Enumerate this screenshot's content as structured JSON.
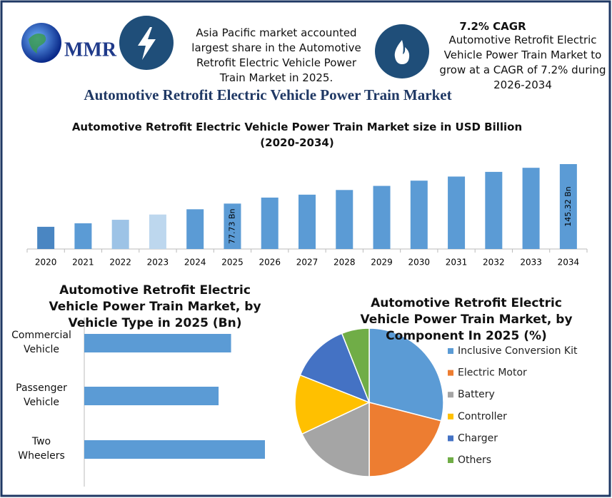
{
  "header": {
    "logo_text": "MMR",
    "info_text": "Asia Pacific market accounted largest share in the Automotive Retrofit Electric Vehicle Power Train Market in 2025.",
    "cagr_title": "7.2% CAGR",
    "cagr_text": "Automotive Retrofit Electric Vehicle Power Train Market to grow at a CAGR of 7.2% during 2026-2034",
    "title": "Automotive Retrofit Electric Vehicle Power Train Market"
  },
  "chart_data": [
    {
      "type": "bar",
      "title": "Automotive Retrofit Electric Vehicle Power Train Market size in USD Billion (2020-2034)",
      "categories": [
        "2020",
        "2021",
        "2022",
        "2023",
        "2024",
        "2025",
        "2026",
        "2027",
        "2028",
        "2029",
        "2030",
        "2031",
        "2032",
        "2033",
        "2034"
      ],
      "values": [
        38,
        44,
        50,
        59,
        68,
        77.73,
        88,
        93,
        101,
        108,
        117,
        124,
        132,
        139,
        145.32
      ],
      "value_labels": [
        null,
        null,
        null,
        null,
        null,
        "77.73 Bn",
        null,
        null,
        null,
        null,
        null,
        null,
        null,
        null,
        "145.32 Bn"
      ],
      "colors": [
        "#4a86c2",
        "#5b9bd5",
        "#9dc3e6",
        "#bdd7ee",
        "#5b9bd5",
        "#5b9bd5",
        "#5b9bd5",
        "#5b9bd5",
        "#5b9bd5",
        "#5b9bd5",
        "#5b9bd5",
        "#5b9bd5",
        "#5b9bd5",
        "#5b9bd5",
        "#5b9bd5"
      ]
    },
    {
      "type": "horizontal_bar",
      "title": "Automotive Retrofit Electric Vehicle Power Train Market, by Vehicle Type in 2025 (Bn)",
      "categories": [
        "Commercial Vehicle",
        "Passenger Vehicle",
        "Two Wheelers"
      ],
      "values": [
        24.7,
        22.6,
        30.4
      ],
      "color": "#5b9bd5"
    },
    {
      "type": "pie",
      "title": "Automotive Retrofit Electric Vehicle Power Train Market, by Component In 2025 (%)",
      "categories": [
        "Inclusive Conversion Kit",
        "Electric Motor",
        "Battery",
        "Controller",
        "Charger",
        "Others"
      ],
      "values": [
        29,
        21,
        18,
        13,
        13,
        6
      ],
      "colors": [
        "#5b9bd5",
        "#ed7d31",
        "#a5a5a5",
        "#ffc000",
        "#4472c4",
        "#70ad47"
      ]
    }
  ]
}
